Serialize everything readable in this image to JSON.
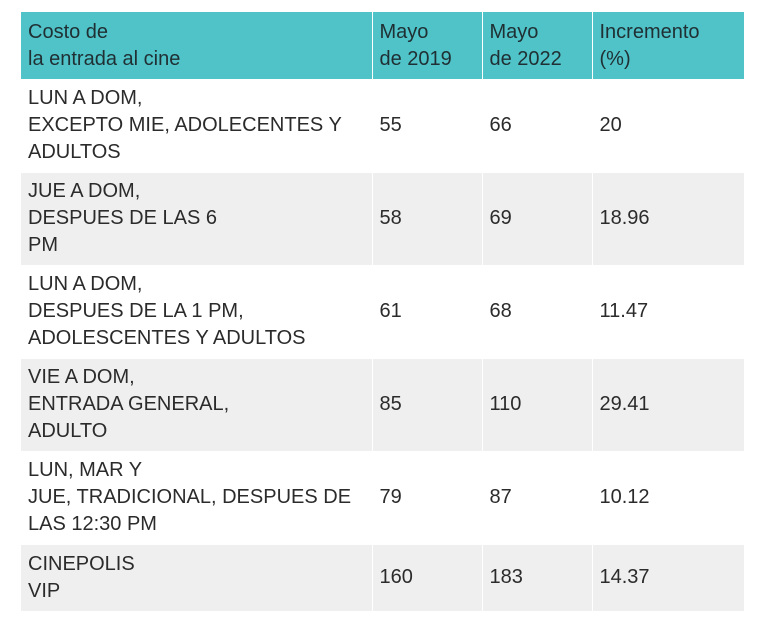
{
  "table": {
    "headers": [
      "Costo de\nla entrada al cine",
      "Mayo\nde 2019",
      "Mayo\nde 2022",
      "Incremento\n(%)"
    ],
    "rows": [
      {
        "concept": "LUN A DOM,\nEXCEPTO MIE, ADOLECENTES Y\nADULTOS",
        "may2019": "55",
        "may2022": "66",
        "increase": "20"
      },
      {
        "concept": "JUE A DOM,\nDESPUES DE LAS 6\nPM",
        "may2019": "58",
        "may2022": "69",
        "increase": "18.96"
      },
      {
        "concept": "LUN A DOM,\nDESPUES DE LA 1 PM,\nADOLESCENTES Y ADULTOS",
        "may2019": "61",
        "may2022": "68",
        "increase": "11.47"
      },
      {
        "concept": "VIE A DOM,\nENTRADA GENERAL,\nADULTO",
        "may2019": "85",
        "may2022": "110",
        "increase": "29.41"
      },
      {
        "concept": "LUN, MAR Y\nJUE, TRADICIONAL, DESPUES DE\nLAS 12:30 PM",
        "may2019": "79",
        "may2022": "87",
        "increase": "10.12"
      },
      {
        "concept": "CINEPOLIS\nVIP",
        "may2019": "160",
        "may2022": "183",
        "increase": "14.37"
      }
    ]
  },
  "colors": {
    "header_bg": "#4fc3c8",
    "row_alt_bg": "#efefef",
    "text": "#2b2b2b"
  }
}
